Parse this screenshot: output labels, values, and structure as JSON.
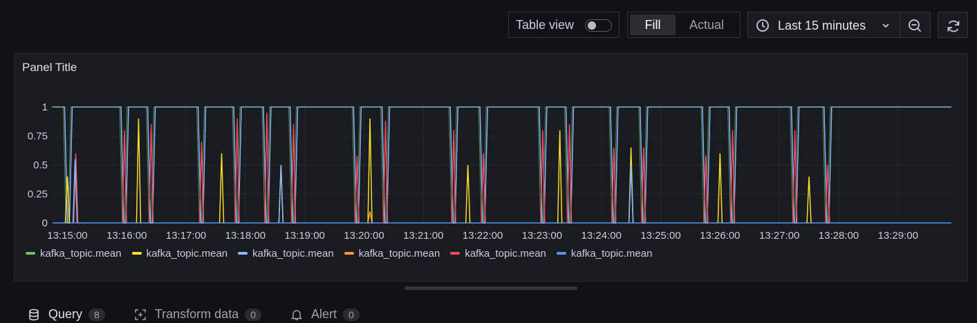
{
  "toolbar": {
    "table_view_label": "Table view",
    "table_view_on": false,
    "fill_label": "Fill",
    "actual_label": "Actual",
    "time_range": "Last 15 minutes"
  },
  "panel": {
    "title": "Panel Title"
  },
  "legend": [
    {
      "name": "kafka_topic.mean",
      "color": "#73bf69"
    },
    {
      "name": "kafka_topic.mean",
      "color": "#fade2a"
    },
    {
      "name": "kafka_topic.mean",
      "color": "#8ab8ff"
    },
    {
      "name": "kafka_topic.mean",
      "color": "#ff9830"
    },
    {
      "name": "kafka_topic.mean",
      "color": "#f2495c"
    },
    {
      "name": "kafka_topic.mean",
      "color": "#5794f2"
    }
  ],
  "tabs": [
    {
      "label": "Query",
      "count": "8",
      "icon": "database-icon"
    },
    {
      "label": "Transform data",
      "count": "0",
      "icon": "transform-icon"
    },
    {
      "label": "Alert",
      "count": "0",
      "icon": "bell-icon"
    }
  ],
  "chart_data": {
    "type": "line",
    "title": "Panel Title",
    "y_ticks": [
      "1",
      "0.75",
      "0.5",
      "0.25",
      "0"
    ],
    "ylim": [
      0,
      1
    ],
    "x_ticks": [
      "13:15:00",
      "13:16:00",
      "13:17:00",
      "13:18:00",
      "13:19:00",
      "13:20:00",
      "13:21:00",
      "13:22:00",
      "13:23:00",
      "13:24:00",
      "13:25:00",
      "13:26:00",
      "13:27:00",
      "13:28:00",
      "13:29:00"
    ],
    "xlim_minutes": [
      14.75,
      29.9
    ],
    "grid": true,
    "legend_placement": "bottom-left",
    "dips": [
      {
        "t": 15.0,
        "green": 0.0,
        "yellow": 0.4,
        "red": 0.0
      },
      {
        "t": 15.13,
        "green": 1.0,
        "blue": 0.55,
        "red": 0.6
      },
      {
        "t": 15.95,
        "green": 0.0,
        "red": 0.8
      },
      {
        "t": 16.2,
        "yellow": 0.9
      },
      {
        "t": 16.4,
        "green": 0.0,
        "red": 0.85
      },
      {
        "t": 17.25,
        "green": 0.0,
        "red": 0.7
      },
      {
        "t": 17.6,
        "yellow": 0.6
      },
      {
        "t": 17.85,
        "green": 0.0,
        "red": 0.9
      },
      {
        "t": 18.35,
        "green": 0.0,
        "red": 0.95
      },
      {
        "t": 18.6,
        "yellow": 0.5,
        "blue": 0.5
      },
      {
        "t": 18.8,
        "green": 0.0,
        "red": 0.85
      },
      {
        "t": 19.87,
        "green": 0.0,
        "red": 0.58
      },
      {
        "t": 20.1,
        "yellow": 0.9,
        "orange": 0.1
      },
      {
        "t": 20.35,
        "green": 0.0,
        "red": 0.88
      },
      {
        "t": 21.5,
        "green": 0.0,
        "red": 0.8
      },
      {
        "t": 21.75,
        "yellow": 0.5
      },
      {
        "t": 22.0,
        "green": 0.0,
        "red": 0.6
      },
      {
        "t": 23.0,
        "green": 0.0,
        "red": 0.8
      },
      {
        "t": 23.3,
        "yellow": 0.8
      },
      {
        "t": 23.45,
        "green": 0.0,
        "red": 0.85
      },
      {
        "t": 24.2,
        "green": 0.0,
        "red": 0.65
      },
      {
        "t": 24.5,
        "yellow": 0.65,
        "blue": 0.5
      },
      {
        "t": 24.7,
        "green": 0.0,
        "red": 0.65
      },
      {
        "t": 25.75,
        "green": 0.0,
        "red": 0.58
      },
      {
        "t": 26.0,
        "yellow": 0.6
      },
      {
        "t": 26.2,
        "green": 0.0,
        "red": 0.8
      },
      {
        "t": 27.25,
        "green": 0.0,
        "red": 0.8
      },
      {
        "t": 27.5,
        "yellow": 0.4
      },
      {
        "t": 27.8,
        "green": 0.0,
        "red": 0.5
      }
    ]
  }
}
